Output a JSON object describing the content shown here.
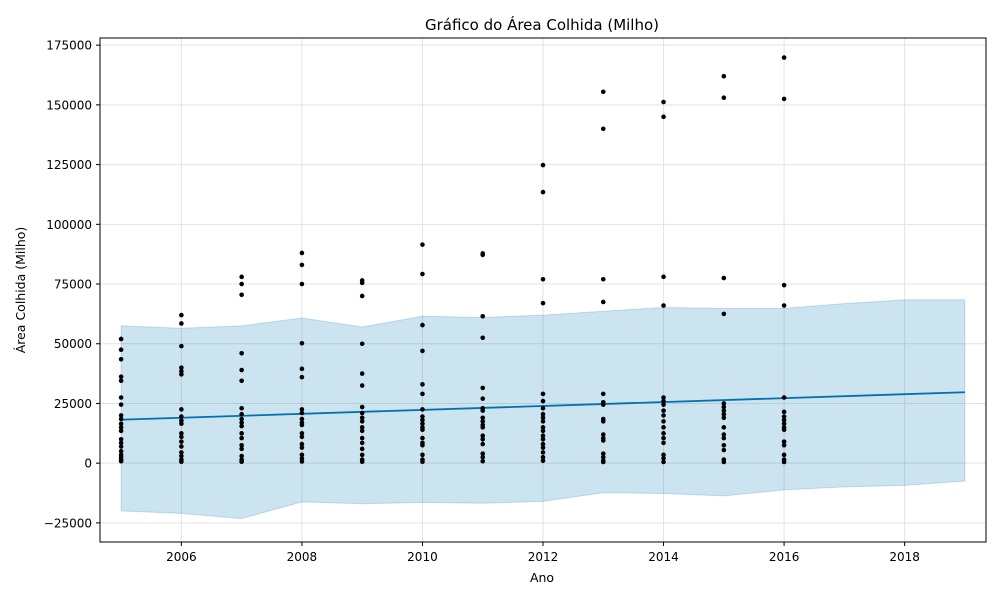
{
  "chart_data": {
    "type": "scatter",
    "title": "Gráfico do Área Colhida (Milho)",
    "xlabel": "Ano",
    "ylabel": "Área Colhida (Milho)",
    "xlim": [
      2004.65,
      2019.35
    ],
    "ylim": [
      -33000,
      178000
    ],
    "grid": true,
    "x_ticks": [
      2006,
      2008,
      2010,
      2012,
      2014,
      2016,
      2018
    ],
    "y_ticks": [
      -25000,
      0,
      25000,
      50000,
      75000,
      100000,
      125000,
      150000,
      175000
    ],
    "colors": {
      "points": "#000000",
      "trend": "#0072b2",
      "band_fill": "#0072b2",
      "band_opacity": 0.2,
      "grid": "#e3e3e3"
    },
    "trend": {
      "x": [
        2005,
        2019
      ],
      "y": [
        18200,
        29700
      ]
    },
    "uncertainty_band": {
      "x": [
        2005,
        2006,
        2007,
        2008,
        2009,
        2010,
        2011,
        2012,
        2013,
        2014,
        2015,
        2016,
        2017,
        2018,
        2019
      ],
      "upper": [
        57500,
        56500,
        57500,
        60800,
        57000,
        61500,
        61000,
        62000,
        63600,
        65200,
        64800,
        64800,
        66800,
        68400,
        68400
      ],
      "lower": [
        -20000,
        -21000,
        -23200,
        -16200,
        -17000,
        -16400,
        -16800,
        -16000,
        -12400,
        -12700,
        -13700,
        -11200,
        -9900,
        -9300,
        -7500
      ]
    },
    "series": [
      {
        "values": [
          {
            "x": 2005,
            "y": [
              52000,
              47500,
              43500,
              36200,
              34500,
              27500,
              24500,
              20000,
              18500,
              16500,
              15000,
              13500,
              10000,
              8500,
              7000,
              5000,
              3500,
              2500,
              1500,
              800
            ]
          },
          {
            "x": 2006,
            "y": [
              62000,
              58500,
              49000,
              40000,
              38500,
              37200,
              22500,
              19500,
              17800,
              16500,
              12500,
              11000,
              9000,
              7000,
              4500,
              3000,
              1500,
              600
            ]
          },
          {
            "x": 2007,
            "y": [
              78000,
              75000,
              70500,
              46000,
              39000,
              34500,
              23000,
              20500,
              18500,
              17000,
              15500,
              12500,
              10500,
              7500,
              6000,
              3000,
              1500,
              600
            ]
          },
          {
            "x": 2008,
            "y": [
              88000,
              83000,
              75000,
              50200,
              39500,
              36000,
              22500,
              21000,
              18500,
              17000,
              16000,
              12500,
              11000,
              8000,
              6500,
              3500,
              2000,
              700
            ]
          },
          {
            "x": 2009,
            "y": [
              76500,
              75500,
              70000,
              50000,
              37500,
              32500,
              23500,
              21000,
              19000,
              17500,
              15000,
              13500,
              10500,
              8500,
              6000,
              3500,
              1500,
              600
            ]
          },
          {
            "x": 2010,
            "y": [
              91500,
              79200,
              57800,
              47000,
              33000,
              29000,
              22500,
              19500,
              18000,
              16500,
              15000,
              14000,
              10500,
              8500,
              7500,
              3500,
              1500,
              600
            ]
          },
          {
            "x": 2011,
            "y": [
              87800,
              87200,
              61500,
              52500,
              31500,
              27000,
              23000,
              22000,
              19000,
              17500,
              16000,
              15000,
              11500,
              10000,
              8000,
              4000,
              2500,
              800
            ]
          },
          {
            "x": 2012,
            "y": [
              124800,
              113500,
              77000,
              67000,
              29000,
              26000,
              23000,
              20500,
              19000,
              17500,
              15000,
              13500,
              11500,
              10000,
              8000,
              6500,
              4500,
              2500,
              1000
            ]
          },
          {
            "x": 2013,
            "y": [
              155500,
              140000,
              77000,
              67500,
              29000,
              25500,
              24500,
              18500,
              17500,
              12000,
              10500,
              9500,
              4000,
              2500,
              1000,
              500
            ]
          },
          {
            "x": 2014,
            "y": [
              151200,
              145000,
              78000,
              66000,
              27500,
              26000,
              24500,
              22000,
              20000,
              17500,
              15000,
              12500,
              10500,
              8500,
              3500,
              2000,
              500
            ]
          },
          {
            "x": 2015,
            "y": [
              162000,
              153000,
              77500,
              62500,
              25000,
              23500,
              22000,
              20500,
              19000,
              15000,
              12000,
              10500,
              7500,
              5500,
              1500,
              500
            ]
          },
          {
            "x": 2016,
            "y": [
              169800,
              152500,
              74500,
              66000,
              27500,
              21500,
              19500,
              18000,
              16500,
              15000,
              14000,
              9000,
              7500,
              3500,
              1500,
              500
            ]
          }
        ]
      }
    ]
  }
}
